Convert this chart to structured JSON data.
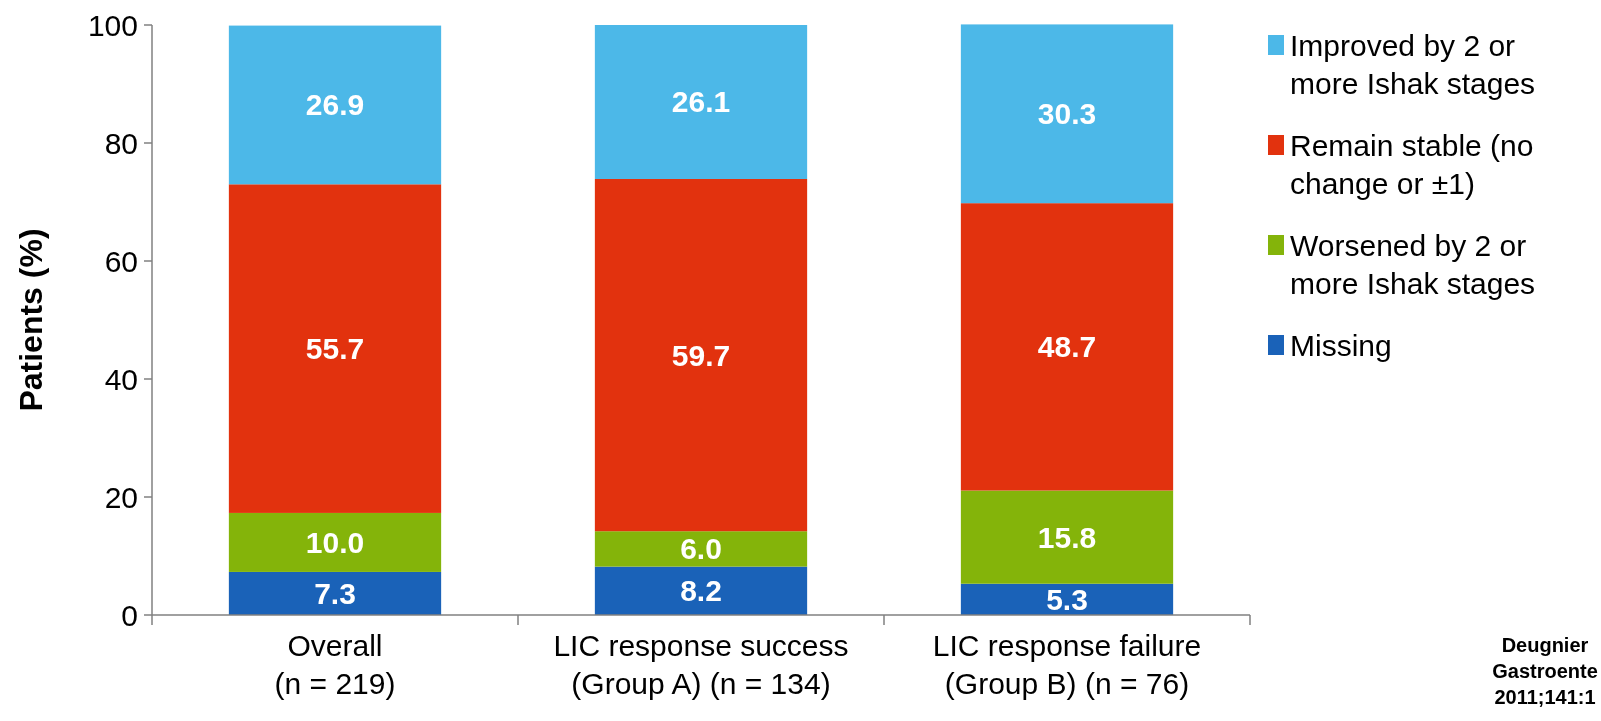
{
  "chart_data": {
    "type": "bar",
    "stacked": true,
    "ylabel": "Patients (%)",
    "categories": [
      "Overall\n(n = 219)",
      "LIC response success\n(Group A) (n = 134)",
      "LIC response failure\n(Group B) (n = 76)"
    ],
    "series": [
      {
        "name": "Missing",
        "color": "#1a62b8",
        "values": [
          7.3,
          8.2,
          5.3
        ],
        "value_labels": [
          "7.3",
          "8.2",
          "5.3"
        ]
      },
      {
        "name": "Worsened by 2 or more Ishak stages",
        "color": "#84b40a",
        "values": [
          10.0,
          6.0,
          15.8
        ],
        "value_labels": [
          "10.0",
          "6.0",
          "15.8"
        ]
      },
      {
        "name": "Remain stable (no change or ±1)",
        "color": "#e2320e",
        "values": [
          55.7,
          59.7,
          48.7
        ],
        "value_labels": [
          "55.7",
          "59.7",
          "48.7"
        ]
      },
      {
        "name": "Improved by 2 or more Ishak stages",
        "color": "#4cb8e8",
        "values": [
          26.9,
          26.1,
          30.3
        ],
        "value_labels": [
          "26.9",
          "26.1",
          "30.3"
        ]
      }
    ],
    "ylim": [
      0,
      100
    ],
    "yticks": [
      0,
      20,
      40,
      60,
      80,
      100
    ],
    "legend": "right",
    "annotations": [
      "Deugnier\nGastroente\n2011;141:1"
    ]
  }
}
